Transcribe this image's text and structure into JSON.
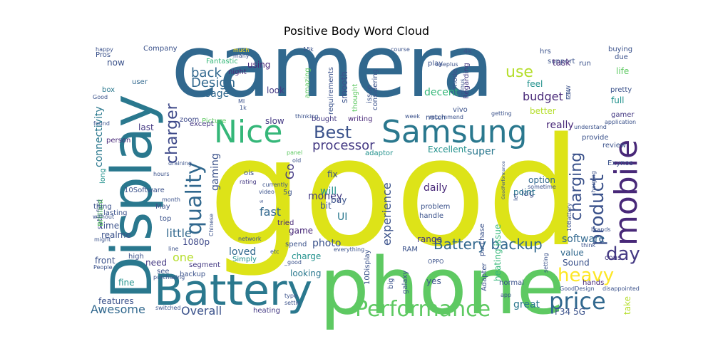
{
  "chart_data": {
    "type": "wordcloud",
    "title": "Positive Body Word Cloud",
    "colormap": "viridis",
    "background": "#ffffff",
    "words": [
      {
        "text": "good",
        "color": "#dde318"
      },
      {
        "text": "camera",
        "color": "#31688e"
      },
      {
        "text": "phone",
        "color": "#5ec962"
      },
      {
        "text": "Display",
        "color": "#2a788e"
      },
      {
        "text": "Battery",
        "color": "#2a788e"
      },
      {
        "text": "Nice",
        "color": "#35b779"
      },
      {
        "text": "Samsung",
        "color": "#2a788e"
      },
      {
        "text": "mobile",
        "color": "#482878"
      },
      {
        "text": "Performance",
        "color": "#5ec962"
      },
      {
        "text": "price",
        "color": "#31688e"
      },
      {
        "text": "quality",
        "color": "#31688e"
      },
      {
        "text": "product",
        "color": "#3b528b"
      },
      {
        "text": "day",
        "color": "#443983"
      },
      {
        "text": "heavy",
        "color": "#fde725"
      },
      {
        "text": "Best",
        "color": "#3b528b"
      },
      {
        "text": "charger",
        "color": "#3e4989"
      },
      {
        "text": "charging",
        "color": "#3b528b"
      },
      {
        "text": "Battery backup",
        "color": "#31688e"
      },
      {
        "text": "use",
        "color": "#b5de2b"
      },
      {
        "text": "Design",
        "color": "#31688e"
      },
      {
        "text": "Awesome",
        "color": "#31688e"
      },
      {
        "text": "Overall",
        "color": "#3b528b"
      },
      {
        "text": "experience",
        "color": "#3b528b"
      },
      {
        "text": "processor",
        "color": "#443983"
      },
      {
        "text": "fast",
        "color": "#31688e"
      },
      {
        "text": "back",
        "color": "#31688e"
      },
      {
        "text": "budget",
        "color": "#482878"
      },
      {
        "text": "gaming",
        "color": "#3b528b"
      },
      {
        "text": "money",
        "color": "#443983"
      },
      {
        "text": "Go",
        "color": "#443983"
      },
      {
        "text": "one",
        "color": "#b5de2b"
      },
      {
        "text": "really",
        "color": "#482878"
      },
      {
        "text": "super",
        "color": "#2a788e"
      },
      {
        "text": "little",
        "color": "#31688e"
      },
      {
        "text": "great",
        "color": "#2a788e"
      },
      {
        "text": "loved",
        "color": "#31688e"
      },
      {
        "text": "photo",
        "color": "#3b528b"
      },
      {
        "text": "software",
        "color": "#31688e"
      },
      {
        "text": "decent",
        "color": "#35b779"
      },
      {
        "text": "usage",
        "color": "#31688e"
      },
      {
        "text": "connectivity",
        "color": "#2a788e"
      },
      {
        "text": "daily",
        "color": "#482878"
      },
      {
        "text": "will",
        "color": "#21918c"
      },
      {
        "text": "UI",
        "color": "#2a788e"
      },
      {
        "text": "time",
        "color": "#3b528b"
      },
      {
        "text": "realme",
        "color": "#3b528b"
      },
      {
        "text": "1080p",
        "color": "#3e4989"
      },
      {
        "text": "front",
        "color": "#3b528b"
      },
      {
        "text": "need",
        "color": "#443983"
      },
      {
        "text": "last",
        "color": "#443983"
      },
      {
        "text": "full",
        "color": "#21918c"
      },
      {
        "text": "feel",
        "color": "#21918c"
      },
      {
        "text": "Excellent",
        "color": "#21918c"
      },
      {
        "text": "range",
        "color": "#443983"
      },
      {
        "text": "lag",
        "color": "#3b528b"
      },
      {
        "text": "point",
        "color": "#2a788e"
      },
      {
        "text": "value",
        "color": "#31688e"
      },
      {
        "text": "Sound",
        "color": "#3b528b"
      },
      {
        "text": "F34 5G",
        "color": "#3b528b"
      },
      {
        "text": "take",
        "color": "#b5de2b"
      },
      {
        "text": "hands",
        "color": "#482878"
      },
      {
        "text": "cons",
        "color": "#443983"
      },
      {
        "text": "better",
        "color": "#b5de2b"
      },
      {
        "text": "slow",
        "color": "#443983"
      },
      {
        "text": "look",
        "color": "#443983"
      },
      {
        "text": "using",
        "color": "#482878"
      },
      {
        "text": "night",
        "color": "#482878"
      },
      {
        "text": "now",
        "color": "#3b528b"
      },
      {
        "text": "box",
        "color": "#2a788e"
      },
      {
        "text": "user",
        "color": "#31688e"
      },
      {
        "text": "lasting",
        "color": "#3b528b"
      },
      {
        "text": "zoom",
        "color": "#3e4989"
      },
      {
        "text": "Picture",
        "color": "#5ec962"
      },
      {
        "text": "except",
        "color": "#443983"
      },
      {
        "text": "person",
        "color": "#482878"
      },
      {
        "text": "long",
        "color": "#21918c"
      },
      {
        "text": "satisfied",
        "color": "#3e4989"
      },
      {
        "text": "Brilliant",
        "color": "#5ec962"
      },
      {
        "text": "10Software",
        "color": "#3b528b"
      },
      {
        "text": "thing",
        "color": "#3b528b"
      },
      {
        "text": "May",
        "color": "#3b528b"
      },
      {
        "text": "top",
        "color": "#3b528b"
      },
      {
        "text": "fine",
        "color": "#21918c"
      },
      {
        "text": "features",
        "color": "#3b528b"
      },
      {
        "text": "heating",
        "color": "#443983"
      },
      {
        "text": "heating issue",
        "color": "#35b779"
      },
      {
        "text": "segment",
        "color": "#443983"
      },
      {
        "text": "backup",
        "color": "#3b528b"
      },
      {
        "text": "see",
        "color": "#3b528b"
      },
      {
        "text": "looking",
        "color": "#2a788e"
      },
      {
        "text": "charge",
        "color": "#21918c"
      },
      {
        "text": "game",
        "color": "#482878"
      },
      {
        "text": "Simply",
        "color": "#21918c"
      },
      {
        "text": "spend",
        "color": "#3b528b"
      },
      {
        "text": "network",
        "color": "#3b528b"
      },
      {
        "text": "tried",
        "color": "#482878"
      },
      {
        "text": "bit",
        "color": "#3b528b"
      },
      {
        "text": "buy",
        "color": "#3b528b"
      },
      {
        "text": "fix",
        "color": "#3b528b"
      },
      {
        "text": "rating",
        "color": "#443983"
      },
      {
        "text": "5g",
        "color": "#3b528b"
      },
      {
        "text": "ois",
        "color": "#3b528b"
      },
      {
        "text": "old",
        "color": "#3b528b"
      },
      {
        "text": "panel",
        "color": "#5ec962"
      },
      {
        "text": "adaptor",
        "color": "#21918c"
      },
      {
        "text": "bought",
        "color": "#443983"
      },
      {
        "text": "writing",
        "color": "#482878"
      },
      {
        "text": "smooth",
        "color": "#3b528b"
      },
      {
        "text": "amazing",
        "color": "#5ec962"
      },
      {
        "text": "thought",
        "color": "#5ec962"
      },
      {
        "text": "issue",
        "color": "#3b528b"
      },
      {
        "text": "considering",
        "color": "#3b528b"
      },
      {
        "text": "requirements",
        "color": "#3b528b"
      },
      {
        "text": "Regarding",
        "color": "#443983"
      },
      {
        "text": "mode",
        "color": "#3b528b"
      },
      {
        "text": "vivo",
        "color": "#3b528b"
      },
      {
        "text": "notch",
        "color": "#3b528b"
      },
      {
        "text": "play",
        "color": "#3b528b"
      },
      {
        "text": "4k",
        "color": "#3b528b"
      },
      {
        "text": "support",
        "color": "#3b528b"
      },
      {
        "text": "hrs",
        "color": "#3b528b"
      },
      {
        "text": "task",
        "color": "#482878"
      },
      {
        "text": "run",
        "color": "#3b528b"
      },
      {
        "text": "due",
        "color": "#3b528b"
      },
      {
        "text": "buying",
        "color": "#3b528b"
      },
      {
        "text": "life",
        "color": "#5ec962"
      },
      {
        "text": "pretty",
        "color": "#3b528b"
      },
      {
        "text": "gamer",
        "color": "#443983"
      },
      {
        "text": "provide",
        "color": "#3b528b"
      },
      {
        "text": "review",
        "color": "#3b528b"
      },
      {
        "text": "Exynos",
        "color": "#3b528b"
      },
      {
        "text": "option",
        "color": "#31688e"
      },
      {
        "text": "sometime",
        "color": "#3b528b"
      },
      {
        "text": "problem",
        "color": "#3b528b"
      },
      {
        "text": "handle",
        "color": "#3b528b"
      },
      {
        "text": "purchase",
        "color": "#3b528b"
      },
      {
        "text": "Adapter",
        "color": "#3b528b"
      },
      {
        "text": "normal",
        "color": "#3b528b"
      },
      {
        "text": "yes",
        "color": "#3b528b"
      },
      {
        "text": "galaxy",
        "color": "#3b528b"
      },
      {
        "text": "big",
        "color": "#3b528b"
      },
      {
        "text": "RAM",
        "color": "#3b528b"
      },
      {
        "text": "10Display",
        "color": "#3b528b"
      },
      {
        "text": "everything",
        "color": "#3b528b"
      },
      {
        "text": "_good",
        "color": "#3b528b"
      },
      {
        "text": "Company",
        "color": "#3b528b"
      },
      {
        "text": "happy",
        "color": "#3b528b"
      },
      {
        "text": "Pros",
        "color": "#3b528b"
      },
      {
        "text": "Fantastic",
        "color": "#35b779"
      },
      {
        "text": "much",
        "color": "#fde725"
      },
      {
        "text": "many",
        "color": "#3b528b"
      },
      {
        "text": "15k",
        "color": "#3b528b"
      },
      {
        "text": "MI",
        "color": "#3b528b"
      },
      {
        "text": "1k",
        "color": "#3b528b"
      },
      {
        "text": "F34",
        "color": "#3b528b"
      },
      {
        "text": "25W",
        "color": "#3b528b"
      },
      {
        "text": "recommend",
        "color": "#3b528b"
      },
      {
        "text": "getting",
        "color": "#3b528b"
      },
      {
        "text": "week",
        "color": "#3b528b"
      },
      {
        "text": "10Battery",
        "color": "#3b528b"
      },
      {
        "text": "think",
        "color": "#3b528b"
      },
      {
        "text": "high",
        "color": "#3b528b"
      },
      {
        "text": "People",
        "color": "#3b528b"
      },
      {
        "text": "setting",
        "color": "#3b528b"
      },
      {
        "text": "app",
        "color": "#3b528b"
      },
      {
        "text": "GoodDesign",
        "color": "#3b528b"
      },
      {
        "text": "disappointed",
        "color": "#3b528b"
      },
      {
        "text": "type",
        "color": "#3b528b"
      },
      {
        "text": "settin",
        "color": "#3b528b"
      },
      {
        "text": "hours",
        "color": "#3b528b"
      },
      {
        "text": "without",
        "color": "#3b528b"
      },
      {
        "text": "line",
        "color": "#3b528b"
      },
      {
        "text": "s",
        "color": "#3b528b"
      },
      {
        "text": "video",
        "color": "#3b528b"
      },
      {
        "text": "currently",
        "color": "#3b528b"
      },
      {
        "text": "month",
        "color": "#3b528b"
      },
      {
        "text": "draining",
        "color": "#3b528b"
      },
      {
        "text": "let",
        "color": "#3b528b"
      },
      {
        "text": "OPPO",
        "color": "#3b528b"
      },
      {
        "text": "oneplus",
        "color": "#3b528b"
      },
      {
        "text": "application",
        "color": "#3b528b"
      },
      {
        "text": "minus",
        "color": "#3b528b"
      },
      {
        "text": "course",
        "color": "#3b528b"
      },
      {
        "text": "understand",
        "color": "#3b528b"
      },
      {
        "text": "thinking",
        "color": "#3b528b"
      },
      {
        "text": "found",
        "color": "#3b528b"
      },
      {
        "text": "Good",
        "color": "#3b528b"
      },
      {
        "text": "etc",
        "color": "#3b528b"
      },
      {
        "text": "switched",
        "color": "#3b528b"
      },
      {
        "text": "purchasing",
        "color": "#3b528b"
      },
      {
        "text": "GoodPerformance",
        "color": "#3b528b"
      },
      {
        "text": "brands",
        "color": "#3b528b"
      },
      {
        "text": "might",
        "color": "#3b528b"
      },
      {
        "text": "Chinese",
        "color": "#3b528b"
      },
      {
        "text": "charging",
        "color": "#3b528b"
      }
    ]
  }
}
